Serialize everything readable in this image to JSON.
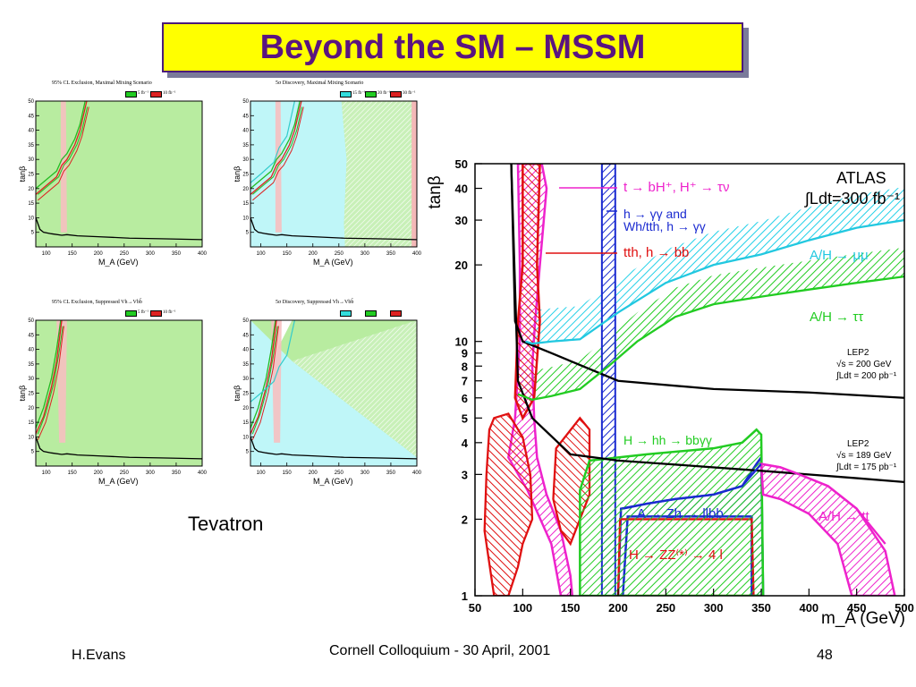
{
  "slide": {
    "title": "Beyond the SM – MSSM",
    "tevatron_label": "Tevatron",
    "footer_author": "H.Evans",
    "footer_center": "Cornell Colloquium - 30 April, 2001",
    "footer_page": "48",
    "title_bg": "#ffff00",
    "title_color": "#5a1480"
  },
  "chart_data": [
    {
      "type": "area",
      "title": "95% CL Exclusion, Maximal Mixing Scenario",
      "legend": [
        "5 fb⁻¹",
        "10 fb⁻¹"
      ],
      "legend_colors": [
        "#22cc22",
        "#dd2222"
      ],
      "xlabel": "M_A (GeV)",
      "ylabel": "tanβ",
      "xticks": [
        "100",
        "150",
        "200",
        "250",
        "300",
        "350",
        "400"
      ],
      "yticks": [
        "5",
        "10",
        "15",
        "20",
        "25",
        "30",
        "35",
        "40",
        "45",
        "50"
      ],
      "xlim": [
        80,
        400
      ],
      "ylim": [
        0,
        50
      ]
    },
    {
      "type": "area",
      "title": "5σ Discovery, Maximal Mixing Scenario",
      "legend": [
        "15 fb⁻¹",
        "20 fb⁻¹",
        "30 fb⁻¹"
      ],
      "legend_colors": [
        "#33dddd",
        "#22cc22",
        "#dd2222"
      ],
      "xlabel": "M_A (GeV)",
      "ylabel": "tanβ",
      "xticks": [
        "100",
        "150",
        "200",
        "250",
        "300",
        "350",
        "400"
      ],
      "yticks": [
        "5",
        "10",
        "15",
        "20",
        "25",
        "30",
        "35",
        "40",
        "45",
        "50"
      ],
      "xlim": [
        80,
        400
      ],
      "ylim": [
        0,
        50
      ]
    },
    {
      "type": "area",
      "title": "95% CL Exclusion, Suppressed Vh→Vbb̄",
      "legend": [
        "5 fb⁻¹",
        "10 fb⁻¹"
      ],
      "legend_colors": [
        "#22cc22",
        "#dd2222"
      ],
      "xlabel": "M_A (GeV)",
      "ylabel": "tanβ",
      "xticks": [
        "100",
        "150",
        "200",
        "250",
        "300",
        "350",
        "400"
      ],
      "yticks": [
        "5",
        "10",
        "15",
        "20",
        "25",
        "30",
        "35",
        "40",
        "45",
        "50"
      ],
      "xlim": [
        80,
        400
      ],
      "ylim": [
        0,
        50
      ]
    },
    {
      "type": "area",
      "title": "5σ Discovery, Suppressed Vh→Vbb̄",
      "legend": [
        "",
        "",
        ""
      ],
      "legend_colors": [
        "#33dddd",
        "#22cc22",
        "#dd2222"
      ],
      "xlabel": "M_A (GeV)",
      "ylabel": "tanβ",
      "xticks": [
        "100",
        "150",
        "200",
        "250",
        "300",
        "350",
        "400"
      ],
      "yticks": [
        "5",
        "10",
        "15",
        "20",
        "25",
        "30",
        "35",
        "40",
        "45",
        "50"
      ],
      "xlim": [
        80,
        400
      ],
      "ylim": [
        0,
        50
      ]
    },
    {
      "type": "line",
      "title": "ATLAS",
      "lumi": "∫Ldt=300 fb⁻¹",
      "xlabel": "m_A (GeV)",
      "ylabel": "tanβ",
      "xlim": [
        50,
        500
      ],
      "ylim": [
        1,
        50
      ],
      "yscale": "log",
      "xticks": [
        50,
        100,
        150,
        200,
        250,
        300,
        350,
        400,
        450,
        500
      ],
      "yticks": [
        1,
        2,
        3,
        4,
        5,
        6,
        7,
        8,
        9,
        10,
        20,
        30,
        40,
        50
      ],
      "lep2_a": {
        "line1": "LEP2",
        "line2": "√s = 200 GeV",
        "line3": "∫Ldt = 200 pb⁻¹"
      },
      "lep2_b": {
        "line1": "LEP2",
        "line2": "√s = 189 GeV",
        "line3": "∫Ldt = 175 pb⁻¹"
      },
      "annotations": [
        {
          "text": "t → bH⁺, H⁺ → τν",
          "color": "#ee22cc"
        },
        {
          "text": "h → γγ and",
          "color": "#1a2ad0"
        },
        {
          "text": "Wh/tth, h → γγ",
          "color": "#1a2ad0"
        },
        {
          "text": "tth, h → bb",
          "color": "#e01010"
        },
        {
          "text": "A/H → μμ",
          "color": "#22c8e0"
        },
        {
          "text": "A/H → ττ",
          "color": "#22cc22"
        },
        {
          "text": "H → hh → bbγγ",
          "color": "#22cc22"
        },
        {
          "text": "A → Zh → llbb",
          "color": "#1a2ad0"
        },
        {
          "text": "H → ZZ⁽*⁾ → 4 l",
          "color": "#e01010"
        },
        {
          "text": "A/H → tt",
          "color": "#ee22cc"
        }
      ],
      "series": [
        {
          "color": "#000000",
          "x": [
            88,
            92,
            100,
            130,
            200,
            300,
            400,
            500
          ],
          "y": [
            50,
            12,
            10,
            9,
            7,
            6.5,
            6.3,
            6
          ]
        },
        {
          "color": "#000000",
          "x": [
            88,
            95,
            110,
            150,
            200,
            250,
            350,
            450,
            500
          ],
          "y": [
            50,
            7,
            5,
            3.6,
            3.4,
            3.3,
            3.1,
            2.9,
            2.8
          ]
        },
        {
          "color": "#22c8e0",
          "x": [
            103,
            110,
            130,
            160,
            200,
            250,
            300,
            350,
            400,
            450,
            500
          ],
          "y": [
            10,
            9.8,
            10,
            10.2,
            13,
            17,
            20,
            22,
            25,
            28,
            30
          ]
        },
        {
          "color": "#22cc22",
          "x": [
            95,
            110,
            130,
            160,
            190,
            220,
            260,
            300,
            350,
            400,
            450,
            500
          ],
          "y": [
            6.2,
            5.9,
            6.1,
            6.5,
            8,
            10,
            12.5,
            14,
            15,
            16,
            17,
            18
          ]
        },
        {
          "color": "#1a2ad0",
          "x": [
            205,
            230,
            260,
            300,
            330,
            350
          ],
          "y": [
            2.2,
            2.3,
            2.4,
            2.5,
            2.7,
            3.3
          ]
        },
        {
          "color": "#ee22cc",
          "x": [
            350,
            370,
            390,
            420,
            450,
            480
          ],
          "y": [
            3.3,
            3.2,
            3.0,
            2.7,
            2.2,
            1.6
          ]
        }
      ]
    }
  ]
}
